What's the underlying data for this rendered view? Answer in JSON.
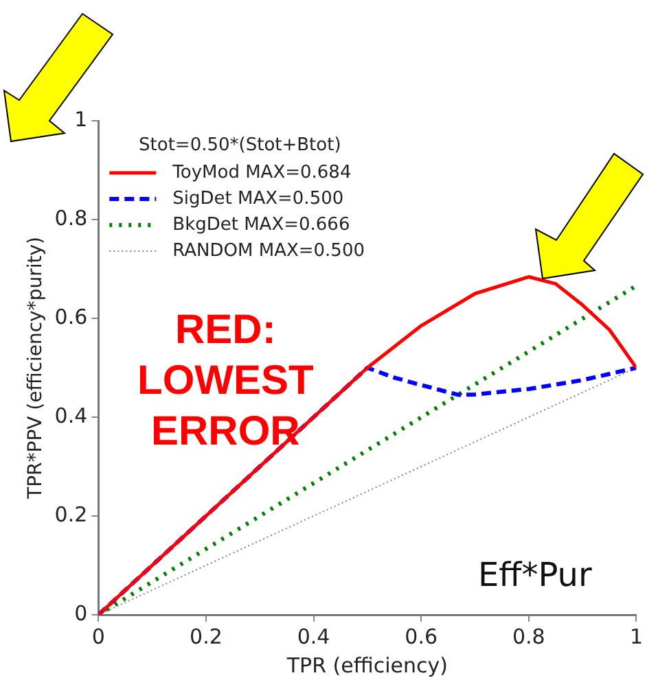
{
  "chart_data": {
    "type": "line",
    "xlabel": "TPR (efficiency)",
    "ylabel": "TPR*PPV (efficiency*purity)",
    "legend_title": "Stot=0.50*(Stot+Btot)",
    "xlim": [
      0,
      1
    ],
    "ylim": [
      0,
      1
    ],
    "xticks": [
      0,
      0.2,
      0.4,
      0.6,
      0.8,
      1
    ],
    "yticks": [
      0,
      0.2,
      0.4,
      0.6,
      0.8,
      1
    ],
    "grid": false,
    "legend": "top left",
    "marker": "none",
    "series": [
      {
        "name": "ToyMod MAX=0.684",
        "color": "#ff0000",
        "line_style": "solid",
        "x": [
          0,
          0.5,
          0.6,
          0.7,
          0.8,
          0.85,
          0.9,
          0.95,
          1
        ],
        "values": [
          0,
          0.5,
          0.585,
          0.65,
          0.684,
          0.67,
          0.627,
          0.577,
          0.5
        ]
      },
      {
        "name": "SigDet MAX=0.500",
        "color": "#0000ff",
        "line_style": "dashed",
        "x": [
          0,
          0.5,
          0.55,
          0.6,
          0.67,
          0.7,
          0.8,
          0.9,
          1
        ],
        "values": [
          0,
          0.5,
          0.48,
          0.465,
          0.445,
          0.446,
          0.457,
          0.475,
          0.5
        ]
      },
      {
        "name": "BkgDet MAX=0.666",
        "color": "#008000",
        "line_style": "dotted",
        "x": [
          0,
          1
        ],
        "values": [
          0,
          0.666
        ]
      },
      {
        "name": "RANDOM MAX=0.500",
        "color": "#808080",
        "line_style": "dotted",
        "x": [
          0,
          1
        ],
        "values": [
          0,
          0.5
        ]
      }
    ],
    "annotations": [
      "RED:\nLOWEST\nERROR",
      "Eff*Pur"
    ]
  }
}
